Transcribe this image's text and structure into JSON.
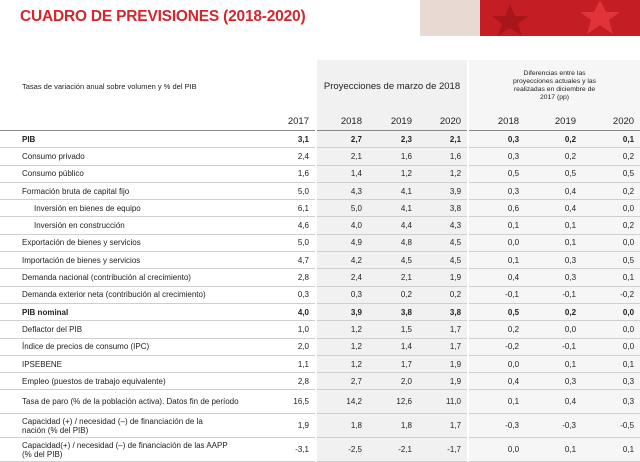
{
  "header": {
    "title": "CUADRO DE PREVISIONES (2018-2020)"
  },
  "table": {
    "caption": "Tasas de variación anual sobre volumen y % del PIB",
    "groups": [
      "Proyecciones de marzo de 2018",
      "Diferencias entre las proyecciones actuales y las realizadas en diciembre de 2017 (pp)"
    ],
    "years": [
      "2017",
      "2018",
      "2019",
      "2020",
      "2018",
      "2019",
      "2020"
    ],
    "rows": [
      {
        "label": "PIB",
        "bold": true,
        "values": [
          "3,1",
          "2,7",
          "2,3",
          "2,1",
          "0,3",
          "0,2",
          "0,1"
        ]
      },
      {
        "label": "Consumo privado",
        "values": [
          "2,4",
          "2,1",
          "1,6",
          "1,6",
          "0,3",
          "0,2",
          "0,2"
        ]
      },
      {
        "label": "Consumo público",
        "values": [
          "1,6",
          "1,4",
          "1,2",
          "1,2",
          "0,5",
          "0,5",
          "0,5"
        ]
      },
      {
        "label": "Formación bruta de capital fijo",
        "values": [
          "5,0",
          "4,3",
          "4,1",
          "3,9",
          "0,3",
          "0,4",
          "0,2"
        ]
      },
      {
        "label": "Inversión en bienes de equipo",
        "indent": true,
        "values": [
          "6,1",
          "5,0",
          "4,1",
          "3,8",
          "0,6",
          "0,4",
          "0,0"
        ]
      },
      {
        "label": "Inversión en construcción",
        "indent": true,
        "values": [
          "4,6",
          "4,0",
          "4,4",
          "4,3",
          "0,1",
          "0,1",
          "0,2"
        ]
      },
      {
        "label": "Exportación de bienes y servicios",
        "values": [
          "5,0",
          "4,9",
          "4,8",
          "4,5",
          "0,0",
          "0,1",
          "0,0"
        ]
      },
      {
        "label": "Importación de bienes y servicios",
        "values": [
          "4,7",
          "4,2",
          "4,5",
          "4,5",
          "0,1",
          "0,3",
          "0,5"
        ]
      },
      {
        "label": "Demanda nacional (contribución al crecimiento)",
        "values": [
          "2,8",
          "2,4",
          "2,1",
          "1,9",
          "0,4",
          "0,3",
          "0,1"
        ]
      },
      {
        "label": "Demanda exterior neta (contribución al crecimiento)",
        "values": [
          "0,3",
          "0,3",
          "0,2",
          "0,2",
          "-0,1",
          "-0,1",
          "-0,2"
        ]
      },
      {
        "label": "PIB nominal",
        "bold": true,
        "values": [
          "4,0",
          "3,9",
          "3,8",
          "3,8",
          "0,5",
          "0,2",
          "0,0"
        ]
      },
      {
        "label": "Deflactor del PIB",
        "values": [
          "1,0",
          "1,2",
          "1,5",
          "1,7",
          "0,2",
          "0,0",
          "0,0"
        ]
      },
      {
        "label": "Índice de precios de consumo (IPC)",
        "values": [
          "2,0",
          "1,2",
          "1,4",
          "1,7",
          "-0,2",
          "-0,1",
          "0,0"
        ]
      },
      {
        "label": "IPSEBENE",
        "values": [
          "1,1",
          "1,2",
          "1,7",
          "1,9",
          "0,0",
          "0,1",
          "0,1"
        ]
      },
      {
        "label": "Empleo (puestos de trabajo equivalente)",
        "values": [
          "2,8",
          "2,7",
          "2,0",
          "1,9",
          "0,4",
          "0,3",
          "0,3"
        ]
      },
      {
        "label": "Tasa de paro (% de la población activa). Datos fin de período",
        "values": [
          "16,5",
          "14,2",
          "12,6",
          "11,0",
          "0,1",
          "0,4",
          "0,3"
        ]
      },
      {
        "label": "Capacidad (+) / necesidad (–) de financiación de la nación (% del PIB)",
        "values": [
          "1,9",
          "1,8",
          "1,8",
          "1,7",
          "-0,3",
          "-0,3",
          "-0,5"
        ]
      },
      {
        "label": "Capacidad(+) / necesidad (–) de financiación de las AAPP (% del PIB)",
        "values": [
          "-3,1",
          "-2,5",
          "-2,1",
          "-1,7",
          "0,0",
          "0,1",
          "0,1"
        ]
      }
    ]
  }
}
